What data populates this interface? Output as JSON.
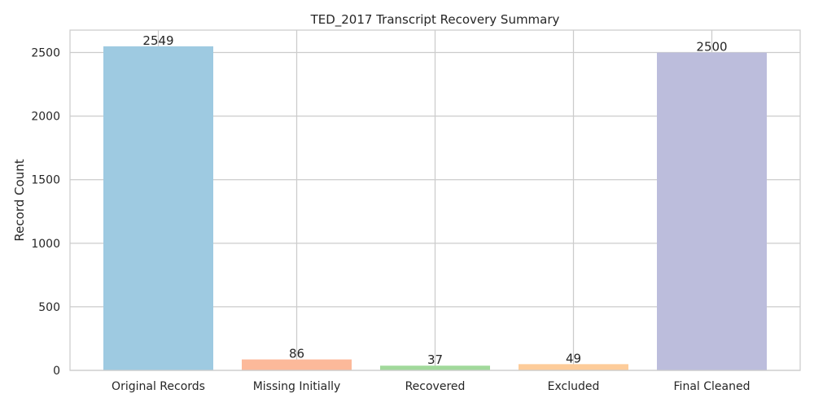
{
  "chart_data": {
    "type": "bar",
    "title": "TED_2017 Transcript Recovery Summary",
    "xlabel": "",
    "ylabel": "Record Count",
    "categories": [
      "Original Records",
      "Missing Initially",
      "Recovered",
      "Excluded",
      "Final Cleaned"
    ],
    "values": [
      2549,
      86,
      37,
      49,
      2500
    ],
    "value_labels": [
      "2549",
      "86",
      "37",
      "49",
      "2500"
    ],
    "colors": [
      "#9ecae1",
      "#fcb99a",
      "#a1d99b",
      "#fdcc9a",
      "#bcbddc"
    ],
    "yticks": [
      0,
      500,
      1000,
      1500,
      2000,
      2500
    ],
    "ytick_labels": [
      "0",
      "500",
      "1000",
      "1500",
      "2000",
      "2500"
    ],
    "ylim": [
      0,
      2676.45
    ],
    "grid": true,
    "legend": "none",
    "grid_color": "#cccccc",
    "background_color": "#ffffff"
  }
}
